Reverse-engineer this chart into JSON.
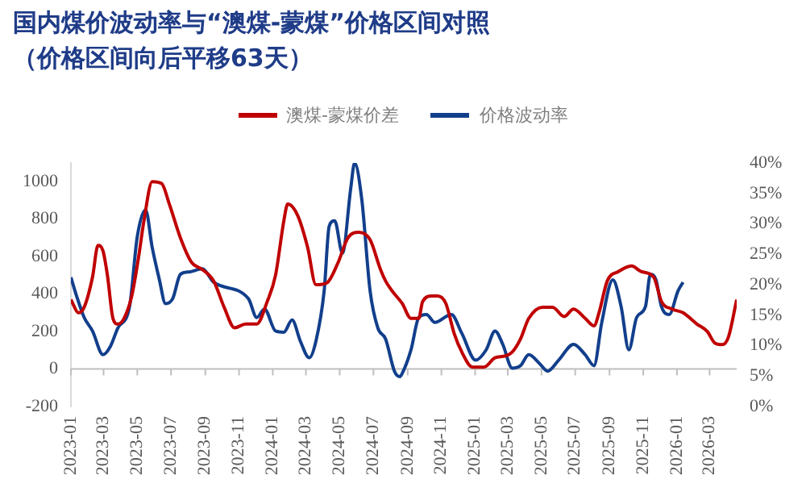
{
  "chart_data": {
    "type": "line",
    "title": "国内煤价波动率与“澳煤-蒙煤”价格区间对照",
    "subtitle": "（价格区间向后平移63天）",
    "legend": "top",
    "grid": false,
    "xlim": [
      "2023-01",
      "2026-04-19"
    ],
    "xticks": [
      "2023-01",
      "2023-03",
      "2023-05",
      "2023-07",
      "2023-09",
      "2023-11",
      "2024-01",
      "2024-03",
      "2024-05",
      "2024-07",
      "2024-09",
      "2024-11",
      "2025-01",
      "2025-03",
      "2025-05",
      "2025-07",
      "2025-09",
      "2025-11",
      "2026-01",
      "2026-03"
    ],
    "ylim": [
      -200,
      1100
    ],
    "yticks": [
      -200,
      0,
      200,
      400,
      600,
      800,
      1000
    ],
    "y2lim": [
      0,
      40
    ],
    "y2ticks": [
      {
        "value": 0,
        "label": "0%"
      },
      {
        "value": 5,
        "label": "5%"
      },
      {
        "value": 10,
        "label": "10%"
      },
      {
        "value": 15,
        "label": "15%"
      },
      {
        "value": 20,
        "label": "20%"
      },
      {
        "value": 25,
        "label": "25%"
      },
      {
        "value": 30,
        "label": "30%"
      },
      {
        "value": 35,
        "label": "35%"
      },
      {
        "value": 40,
        "label": "40%"
      }
    ],
    "ref_lines": [
      {
        "axis": "y",
        "value": 0,
        "color": "#bfbfbf"
      }
    ],
    "series": [
      {
        "name": "澳煤-蒙煤价差",
        "color": "#c00000",
        "x": [
          "2023-01-01",
          "2023-01-15",
          "2023-01-25",
          "2023-02-09",
          "2023-02-19",
          "2023-02-28",
          "2023-03-08",
          "2023-03-18",
          "2023-03-27",
          "2023-04-07",
          "2023-04-21",
          "2023-05-03",
          "2023-05-13",
          "2023-05-28",
          "2023-06-14",
          "2023-06-28",
          "2023-07-18",
          "2023-08-07",
          "2023-08-27",
          "2023-09-16",
          "2023-10-05",
          "2023-10-24",
          "2023-11-13",
          "2023-12-03",
          "2023-12-22",
          "2024-01-06",
          "2024-01-21",
          "2024-01-28",
          "2024-02-15",
          "2024-03-04",
          "2024-03-19",
          "2024-04-08",
          "2024-04-27",
          "2024-05-16",
          "2024-06-05",
          "2024-06-25",
          "2024-07-14",
          "2024-07-23",
          "2024-08-03",
          "2024-08-22",
          "2024-09-07",
          "2024-09-21",
          "2024-09-28",
          "2024-10-15",
          "2024-10-25",
          "2024-11-09",
          "2024-11-24",
          "2024-12-08",
          "2024-12-27",
          "2025-01-17",
          "2025-02-06",
          "2025-02-25",
          "2025-03-09",
          "2025-03-24",
          "2025-04-08",
          "2025-05-03",
          "2025-05-21",
          "2025-06-11",
          "2025-06-28",
          "2025-07-19",
          "2025-08-04",
          "2025-08-13",
          "2025-08-28",
          "2025-09-17",
          "2025-10-11",
          "2025-10-28",
          "2025-11-20",
          "2025-12-04",
          "2025-12-23",
          "2026-01-12",
          "2026-02-06",
          "2026-02-25",
          "2026-03-10",
          "2026-03-24",
          "2026-04-04",
          "2026-04-19"
        ],
        "values": [
          370,
          300,
          330,
          490,
          660,
          630,
          500,
          270,
          240,
          270,
          390,
          590,
          790,
          1000,
          990,
          880,
          700,
          570,
          530,
          470,
          330,
          220,
          240,
          240,
          360,
          500,
          790,
          880,
          820,
          650,
          450,
          460,
          560,
          700,
          730,
          690,
          530,
          470,
          420,
          350,
          270,
          270,
          360,
          390,
          390,
          350,
          190,
          90,
          10,
          10,
          60,
          70,
          90,
          160,
          270,
          330,
          330,
          280,
          320,
          270,
          230,
          300,
          470,
          520,
          550,
          520,
          490,
          360,
          320,
          300,
          240,
          200,
          140,
          130,
          170,
          370
        ]
      },
      {
        "name": "价格波动率",
        "color": "#123f8c",
        "axis": "y2",
        "x": [
          "2023-01-01",
          "2023-01-11",
          "2023-01-25",
          "2023-02-09",
          "2023-02-28",
          "2023-03-13",
          "2023-03-27",
          "2023-04-17",
          "2023-05-01",
          "2023-05-16",
          "2023-05-28",
          "2023-06-10",
          "2023-06-21",
          "2023-07-04",
          "2023-07-18",
          "2023-08-03",
          "2023-08-27",
          "2023-09-16",
          "2023-11-18",
          "2023-12-03",
          "2023-12-17",
          "2024-01-06",
          "2024-01-21",
          "2024-02-05",
          "2024-02-20",
          "2024-03-07",
          "2024-03-19",
          "2024-04-03",
          "2024-04-12",
          "2024-04-22",
          "2024-05-06",
          "2024-05-21",
          "2024-05-28",
          "2024-06-10",
          "2024-06-25",
          "2024-07-09",
          "2024-07-23",
          "2024-08-08",
          "2024-08-18",
          "2024-08-22",
          "2024-09-07",
          "2024-09-21",
          "2024-10-05",
          "2024-10-20",
          "2024-11-19",
          "2024-12-08",
          "2025-01-02",
          "2025-01-21",
          "2025-02-06",
          "2025-02-20",
          "2025-03-09",
          "2025-03-24",
          "2025-04-08",
          "2025-04-27",
          "2025-05-12",
          "2025-06-01",
          "2025-06-28",
          "2025-07-19",
          "2025-08-04",
          "2025-08-18",
          "2025-09-07",
          "2025-09-22",
          "2025-10-06",
          "2025-10-20",
          "2025-11-05",
          "2025-11-14",
          "2025-11-24",
          "2025-12-04",
          "2025-12-18",
          "2026-01-03",
          "2026-01-12"
        ],
        "values": [
          21.2,
          18.2,
          14.6,
          12.4,
          8.5,
          9.8,
          12.9,
          16.4,
          27.9,
          32.3,
          26.1,
          20.8,
          16.9,
          17.7,
          21.7,
          22.1,
          22.6,
          20.4,
          17.7,
          14.6,
          16.0,
          12.4,
          12.2,
          14.2,
          10.7,
          8.0,
          10.7,
          19.0,
          29.6,
          30.5,
          25.2,
          35.8,
          40,
          34.0,
          19.0,
          12.9,
          11.1,
          5.8,
          4.9,
          5.4,
          9.3,
          14.6,
          15.1,
          13.8,
          15.1,
          12.0,
          7.6,
          9.3,
          12.4,
          10.2,
          6.3,
          6.7,
          8.5,
          7.1,
          5.8,
          7.6,
          10.2,
          8.5,
          6.7,
          13.8,
          20.8,
          16.4,
          9.3,
          14.6,
          16.4,
          21.7,
          20.8,
          16.4,
          15.1,
          19.0,
          20.4
        ]
      }
    ]
  }
}
